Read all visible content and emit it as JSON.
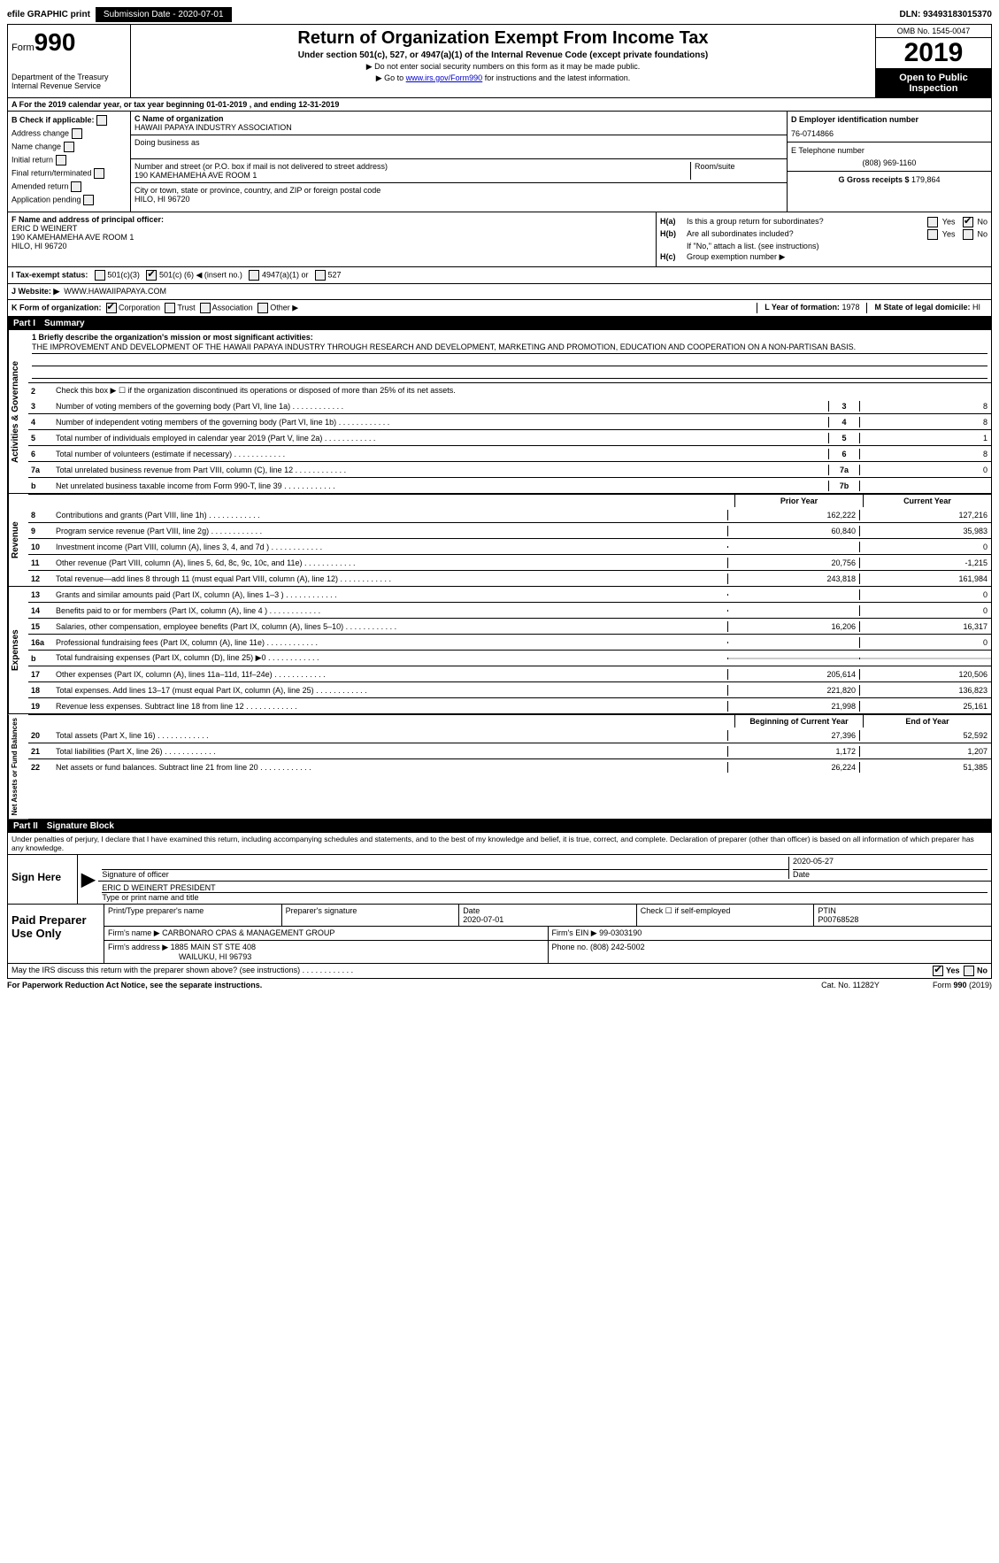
{
  "top": {
    "efile": "efile GRAPHIC print",
    "submission_label": "Submission Date - 2020-07-01",
    "dln": "DLN: 93493183015370"
  },
  "header": {
    "form_prefix": "Form",
    "form_no": "990",
    "dept1": "Department of the Treasury",
    "dept2": "Internal Revenue Service",
    "title": "Return of Organization Exempt From Income Tax",
    "subtitle": "Under section 501(c), 527, or 4947(a)(1) of the Internal Revenue Code (except private foundations)",
    "instr1": "▶ Do not enter social security numbers on this form as it may be made public.",
    "instr2_a": "▶ Go to ",
    "instr2_link": "www.irs.gov/Form990",
    "instr2_b": " for instructions and the latest information.",
    "omb": "OMB No. 1545-0047",
    "year": "2019",
    "open": "Open to Public Inspection"
  },
  "row_a": "A   For the 2019 calendar year, or tax year beginning 01-01-2019        , and ending 12-31-2019",
  "b": {
    "heading": "B Check if applicable:",
    "items": [
      "Address change",
      "Name change",
      "Initial return",
      "Final return/terminated",
      "Amended return",
      "Application pending"
    ]
  },
  "c": {
    "name_label": "C Name of organization",
    "name": "HAWAII PAPAYA INDUSTRY ASSOCIATION",
    "dba_label": "Doing business as",
    "dba": "",
    "street_label": "Number and street (or P.O. box if mail is not delivered to street address)",
    "street": "190 KAMEHAMEHA AVE ROOM 1",
    "room_label": "Room/suite",
    "city_label": "City or town, state or province, country, and ZIP or foreign postal code",
    "city": "HILO, HI  96720"
  },
  "d": {
    "ein_label": "D Employer identification number",
    "ein": "76-0714866",
    "phone_label": "E Telephone number",
    "phone": "(808) 969-1160",
    "gross_label": "G Gross receipts $ ",
    "gross": "179,864"
  },
  "f": {
    "label": "F  Name and address of principal officer:",
    "name": "ERIC D WEINERT",
    "addr1": "190 KAMEHAMEHA AVE ROOM 1",
    "addr2": "HILO, HI  96720"
  },
  "h": {
    "a_label": "H(a)",
    "a_text": "Is this a group return for subordinates?",
    "b_label": "H(b)",
    "b_text": "Are all subordinates included?",
    "b_note": "If \"No,\" attach a list. (see instructions)",
    "c_label": "H(c)",
    "c_text": "Group exemption number ▶",
    "yes": "Yes",
    "no": "No"
  },
  "i": {
    "label": "I     Tax-exempt status:",
    "opt1": "501(c)(3)",
    "opt2a": "501(c) (",
    "opt2_num": "6",
    "opt2b": ") ◀ (insert no.)",
    "opt3": "4947(a)(1) or",
    "opt4": "527"
  },
  "j": {
    "label": "J    Website: ▶",
    "val": "WWW.HAWAIIPAPAYA.COM"
  },
  "k": {
    "label": "K Form of organization:",
    "opts": [
      "Corporation",
      "Trust",
      "Association",
      "Other ▶"
    ]
  },
  "l": {
    "label": "L Year of formation: ",
    "val": "1978"
  },
  "m": {
    "label": "M State of legal domicile: ",
    "val": "HI"
  },
  "part1": {
    "label": "Part I",
    "title": "Summary"
  },
  "summary": {
    "mission_label": "1  Briefly describe the organization's mission or most significant activities:",
    "mission": "THE IMPROVEMENT AND DEVELOPMENT OF THE HAWAII PAPAYA INDUSTRY THROUGH RESEARCH AND DEVELOPMENT, MARKETING AND PROMOTION, EDUCATION AND COOPERATION ON A NON-PARTISAN BASIS.",
    "line2": "Check this box ▶ ☐ if the organization discontinued its operations or disposed of more than 25% of its net assets.",
    "lines_single": [
      {
        "no": "3",
        "text": "Number of voting members of the governing body (Part VI, line 1a)",
        "num": "3",
        "val": "8"
      },
      {
        "no": "4",
        "text": "Number of independent voting members of the governing body (Part VI, line 1b)",
        "num": "4",
        "val": "8"
      },
      {
        "no": "5",
        "text": "Total number of individuals employed in calendar year 2019 (Part V, line 2a)",
        "num": "5",
        "val": "1"
      },
      {
        "no": "6",
        "text": "Total number of volunteers (estimate if necessary)",
        "num": "6",
        "val": "8"
      },
      {
        "no": "7a",
        "text": "Total unrelated business revenue from Part VIII, column (C), line 12",
        "num": "7a",
        "val": "0"
      },
      {
        "no": "b",
        "text": "Net unrelated business taxable income from Form 990-T, line 39",
        "num": "7b",
        "val": ""
      }
    ],
    "prior_head": "Prior Year",
    "current_head": "Current Year",
    "rev_lines": [
      {
        "no": "8",
        "text": "Contributions and grants (Part VIII, line 1h)",
        "prior": "162,222",
        "curr": "127,216"
      },
      {
        "no": "9",
        "text": "Program service revenue (Part VIII, line 2g)",
        "prior": "60,840",
        "curr": "35,983"
      },
      {
        "no": "10",
        "text": "Investment income (Part VIII, column (A), lines 3, 4, and 7d )",
        "prior": "",
        "curr": "0"
      },
      {
        "no": "11",
        "text": "Other revenue (Part VIII, column (A), lines 5, 6d, 8c, 9c, 10c, and 11e)",
        "prior": "20,756",
        "curr": "-1,215"
      },
      {
        "no": "12",
        "text": "Total revenue—add lines 8 through 11 (must equal Part VIII, column (A), line 12)",
        "prior": "243,818",
        "curr": "161,984"
      }
    ],
    "exp_lines": [
      {
        "no": "13",
        "text": "Grants and similar amounts paid (Part IX, column (A), lines 1–3 )",
        "prior": "",
        "curr": "0"
      },
      {
        "no": "14",
        "text": "Benefits paid to or for members (Part IX, column (A), line 4 )",
        "prior": "",
        "curr": "0"
      },
      {
        "no": "15",
        "text": "Salaries, other compensation, employee benefits (Part IX, column (A), lines 5–10)",
        "prior": "16,206",
        "curr": "16,317"
      },
      {
        "no": "16a",
        "text": "Professional fundraising fees (Part IX, column (A), line 11e)",
        "prior": "",
        "curr": "0"
      },
      {
        "no": "b",
        "text": "Total fundraising expenses (Part IX, column (D), line 25) ▶0",
        "prior": "GREY",
        "curr": "GREY"
      },
      {
        "no": "17",
        "text": "Other expenses (Part IX, column (A), lines 11a–11d, 11f–24e)",
        "prior": "205,614",
        "curr": "120,506"
      },
      {
        "no": "18",
        "text": "Total expenses. Add lines 13–17 (must equal Part IX, column (A), line 25)",
        "prior": "221,820",
        "curr": "136,823"
      },
      {
        "no": "19",
        "text": "Revenue less expenses. Subtract line 18 from line 12",
        "prior": "21,998",
        "curr": "25,161"
      }
    ],
    "begin_head": "Beginning of Current Year",
    "end_head": "End of Year",
    "net_lines": [
      {
        "no": "20",
        "text": "Total assets (Part X, line 16)",
        "prior": "27,396",
        "curr": "52,592"
      },
      {
        "no": "21",
        "text": "Total liabilities (Part X, line 26)",
        "prior": "1,172",
        "curr": "1,207"
      },
      {
        "no": "22",
        "text": "Net assets or fund balances. Subtract line 21 from line 20",
        "prior": "26,224",
        "curr": "51,385"
      }
    ]
  },
  "labels": {
    "activities": "Activities & Governance",
    "revenue": "Revenue",
    "expenses": "Expenses",
    "net": "Net Assets or Fund Balances"
  },
  "part2": {
    "label": "Part II",
    "title": "Signature Block"
  },
  "sig": {
    "penalty": "Under penalties of perjury, I declare that I have examined this return, including accompanying schedules and statements, and to the best of my knowledge and belief, it is true, correct, and complete. Declaration of preparer (other than officer) is based on all information of which preparer has any knowledge.",
    "sign_here": "Sign Here",
    "sig_officer": "Signature of officer",
    "date_label": "Date",
    "date": "2020-05-27",
    "name_title": "ERIC D WEINERT  PRESIDENT",
    "name_title_label": "Type or print name and title",
    "paid": "Paid Preparer Use Only",
    "p_name_label": "Print/Type preparer's name",
    "p_name": "",
    "p_sig_label": "Preparer's signature",
    "p_date_label": "Date",
    "p_date": "2020-07-01",
    "p_check_label": "Check ☐ if self-employed",
    "ptin_label": "PTIN",
    "ptin": "P00768528",
    "firm_name_label": "Firm's name     ▶",
    "firm_name": "CARBONARO CPAS & MANAGEMENT GROUP",
    "firm_ein_label": "Firm's EIN ▶",
    "firm_ein": "99-0303190",
    "firm_addr_label": "Firm's address ▶",
    "firm_addr1": "1885 MAIN ST STE 408",
    "firm_addr2": "WAILUKU, HI  96793",
    "firm_phone_label": "Phone no. ",
    "firm_phone": "(808) 242-5002",
    "discuss": "May the IRS discuss this return with the preparer shown above? (see instructions)",
    "yes": "Yes",
    "no": "No"
  },
  "footer": {
    "left": "For Paperwork Reduction Act Notice, see the separate instructions.",
    "mid": "Cat. No. 11282Y",
    "right": "Form 990 (2019)"
  }
}
